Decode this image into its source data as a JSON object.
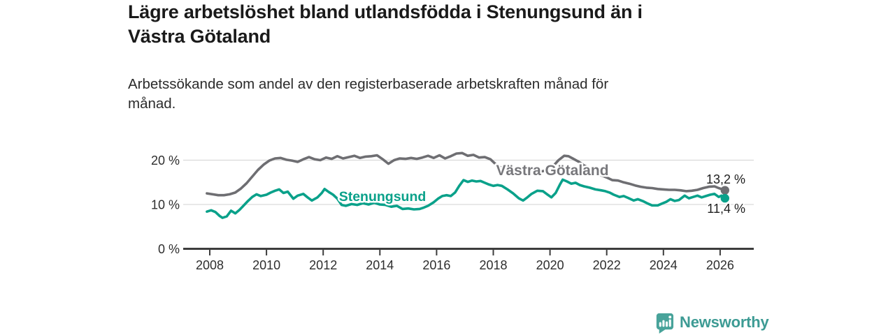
{
  "header": {
    "title": "Lägre arbetslöshet bland utlandsfödda i Stenungsund än i\nVästra Götaland",
    "subtitle": "Arbetssökande som andel av den registerbaserade arbetskraften månad för\nmånad."
  },
  "footer": {
    "brand": "Newsworthy",
    "brand_color": "#3d9b94",
    "logo_color": "#48a39a"
  },
  "chart_data": {
    "type": "line",
    "title": "Lägre arbetslöshet bland utlandsfödda i Stenungsund än i Västra Götaland",
    "subtitle": "Arbetssökande som andel av den registerbaserade arbetskraften månad för månad.",
    "unit": "%",
    "grid": "horizontal-only",
    "legend_position": "inline-labels",
    "x_axis": {
      "ticks": [
        2008,
        2010,
        2012,
        2014,
        2016,
        2018,
        2020,
        2022,
        2024,
        2026
      ],
      "range": [
        2007.9,
        2027.2
      ]
    },
    "y_axis": {
      "ticks": [
        {
          "value": 0,
          "label": "0 %"
        },
        {
          "value": 10,
          "label": "10 %"
        },
        {
          "value": 20,
          "label": "20 %"
        }
      ],
      "grid_values": [
        10,
        20
      ],
      "range": [
        0,
        24
      ]
    },
    "series": [
      {
        "name": "Västra Götaland",
        "color": "#6e6e72",
        "label_color": "#77777b",
        "end_label": "13,2 %",
        "end_value": 13.2,
        "points": [
          [
            2007.9,
            12.5
          ],
          [
            2008.1,
            12.3
          ],
          [
            2008.3,
            12.1
          ],
          [
            2008.5,
            12.1
          ],
          [
            2008.7,
            12.3
          ],
          [
            2008.9,
            12.7
          ],
          [
            2009.1,
            13.6
          ],
          [
            2009.3,
            14.8
          ],
          [
            2009.5,
            16.3
          ],
          [
            2009.7,
            17.8
          ],
          [
            2009.9,
            19.0
          ],
          [
            2010.1,
            19.9
          ],
          [
            2010.3,
            20.4
          ],
          [
            2010.5,
            20.5
          ],
          [
            2010.7,
            20.1
          ],
          [
            2010.9,
            19.9
          ],
          [
            2011.1,
            19.6
          ],
          [
            2011.3,
            20.2
          ],
          [
            2011.5,
            20.7
          ],
          [
            2011.7,
            20.2
          ],
          [
            2011.9,
            20.0
          ],
          [
            2012.1,
            20.6
          ],
          [
            2012.3,
            20.3
          ],
          [
            2012.5,
            20.9
          ],
          [
            2012.7,
            20.4
          ],
          [
            2012.9,
            20.7
          ],
          [
            2013.1,
            21.0
          ],
          [
            2013.3,
            20.5
          ],
          [
            2013.5,
            20.8
          ],
          [
            2013.7,
            20.9
          ],
          [
            2013.9,
            21.1
          ],
          [
            2014.1,
            20.2
          ],
          [
            2014.3,
            19.2
          ],
          [
            2014.5,
            20.0
          ],
          [
            2014.7,
            20.4
          ],
          [
            2014.9,
            20.3
          ],
          [
            2015.1,
            20.5
          ],
          [
            2015.3,
            20.3
          ],
          [
            2015.5,
            20.6
          ],
          [
            2015.7,
            21.0
          ],
          [
            2015.9,
            20.5
          ],
          [
            2016.1,
            21.1
          ],
          [
            2016.3,
            20.4
          ],
          [
            2016.5,
            20.9
          ],
          [
            2016.7,
            21.5
          ],
          [
            2016.9,
            21.6
          ],
          [
            2017.1,
            21.0
          ],
          [
            2017.3,
            21.2
          ],
          [
            2017.5,
            20.6
          ],
          [
            2017.7,
            20.7
          ],
          [
            2017.9,
            20.2
          ],
          [
            2018.1,
            19.0
          ],
          [
            2018.3,
            18.2
          ],
          [
            2018.6,
            17.8
          ],
          [
            2018.9,
            17.5
          ],
          [
            2019.2,
            17.3
          ],
          [
            2019.5,
            17.2
          ],
          [
            2019.8,
            17.6
          ],
          [
            2020.1,
            18.6
          ],
          [
            2020.3,
            20.0
          ],
          [
            2020.5,
            21.0
          ],
          [
            2020.65,
            20.9
          ],
          [
            2020.8,
            20.4
          ],
          [
            2021.0,
            19.7
          ],
          [
            2021.2,
            18.8
          ],
          [
            2021.4,
            18.2
          ],
          [
            2021.6,
            17.4
          ],
          [
            2021.8,
            16.6
          ],
          [
            2022.0,
            16.1
          ],
          [
            2022.2,
            15.5
          ],
          [
            2022.4,
            15.4
          ],
          [
            2022.6,
            15.0
          ],
          [
            2022.8,
            14.7
          ],
          [
            2023.0,
            14.3
          ],
          [
            2023.2,
            14.0
          ],
          [
            2023.4,
            13.8
          ],
          [
            2023.6,
            13.7
          ],
          [
            2023.8,
            13.5
          ],
          [
            2024.0,
            13.4
          ],
          [
            2024.2,
            13.3
          ],
          [
            2024.4,
            13.3
          ],
          [
            2024.6,
            13.2
          ],
          [
            2024.8,
            13.0
          ],
          [
            2025.0,
            13.1
          ],
          [
            2025.2,
            13.3
          ],
          [
            2025.4,
            13.7
          ],
          [
            2025.6,
            14.0
          ],
          [
            2025.8,
            14.1
          ],
          [
            2025.95,
            13.7
          ],
          [
            2026.05,
            13.5
          ],
          [
            2026.17,
            13.2
          ]
        ]
      },
      {
        "name": "Stenungsund",
        "color": "#0aa18a",
        "label_color": "#0aa18a",
        "end_label": "11,4 %",
        "end_value": 11.4,
        "points": [
          [
            2007.9,
            8.4
          ],
          [
            2008.05,
            8.7
          ],
          [
            2008.2,
            8.3
          ],
          [
            2008.35,
            7.4
          ],
          [
            2008.45,
            7.0
          ],
          [
            2008.6,
            7.3
          ],
          [
            2008.75,
            8.6
          ],
          [
            2008.9,
            8.0
          ],
          [
            2009.05,
            8.8
          ],
          [
            2009.2,
            9.8
          ],
          [
            2009.35,
            10.8
          ],
          [
            2009.5,
            11.7
          ],
          [
            2009.65,
            12.3
          ],
          [
            2009.8,
            11.9
          ],
          [
            2010.0,
            12.2
          ],
          [
            2010.15,
            12.7
          ],
          [
            2010.3,
            13.1
          ],
          [
            2010.45,
            13.4
          ],
          [
            2010.6,
            12.6
          ],
          [
            2010.75,
            12.9
          ],
          [
            2010.95,
            11.3
          ],
          [
            2011.1,
            12.0
          ],
          [
            2011.3,
            12.4
          ],
          [
            2011.45,
            11.6
          ],
          [
            2011.6,
            10.9
          ],
          [
            2011.8,
            11.6
          ],
          [
            2011.95,
            12.6
          ],
          [
            2012.05,
            13.5
          ],
          [
            2012.2,
            12.8
          ],
          [
            2012.35,
            12.2
          ],
          [
            2012.5,
            11.3
          ],
          [
            2012.65,
            9.9
          ],
          [
            2012.8,
            9.7
          ],
          [
            2013.0,
            10.1
          ],
          [
            2013.2,
            9.9
          ],
          [
            2013.4,
            10.3
          ],
          [
            2013.6,
            10.0
          ],
          [
            2013.8,
            10.4
          ],
          [
            2014.0,
            10.0
          ],
          [
            2014.2,
            9.9
          ],
          [
            2014.4,
            9.5
          ],
          [
            2014.6,
            9.7
          ],
          [
            2014.8,
            9.0
          ],
          [
            2015.0,
            9.1
          ],
          [
            2015.2,
            8.9
          ],
          [
            2015.4,
            9.0
          ],
          [
            2015.55,
            9.3
          ],
          [
            2015.7,
            9.7
          ],
          [
            2015.9,
            10.5
          ],
          [
            2016.05,
            11.3
          ],
          [
            2016.2,
            11.9
          ],
          [
            2016.35,
            12.1
          ],
          [
            2016.5,
            11.9
          ],
          [
            2016.65,
            12.7
          ],
          [
            2016.8,
            14.2
          ],
          [
            2016.95,
            15.5
          ],
          [
            2017.1,
            15.1
          ],
          [
            2017.25,
            15.4
          ],
          [
            2017.4,
            15.2
          ],
          [
            2017.55,
            15.3
          ],
          [
            2017.7,
            14.9
          ],
          [
            2017.85,
            14.5
          ],
          [
            2018.0,
            14.2
          ],
          [
            2018.15,
            14.4
          ],
          [
            2018.3,
            14.2
          ],
          [
            2018.5,
            13.4
          ],
          [
            2018.7,
            12.5
          ],
          [
            2018.9,
            11.4
          ],
          [
            2019.05,
            10.9
          ],
          [
            2019.2,
            11.6
          ],
          [
            2019.35,
            12.4
          ],
          [
            2019.55,
            13.1
          ],
          [
            2019.75,
            13.0
          ],
          [
            2019.9,
            12.3
          ],
          [
            2020.05,
            11.6
          ],
          [
            2020.2,
            12.6
          ],
          [
            2020.35,
            14.5
          ],
          [
            2020.45,
            15.6
          ],
          [
            2020.6,
            15.2
          ],
          [
            2020.75,
            14.7
          ],
          [
            2020.9,
            14.9
          ],
          [
            2021.05,
            14.4
          ],
          [
            2021.2,
            14.1
          ],
          [
            2021.4,
            13.8
          ],
          [
            2021.6,
            13.4
          ],
          [
            2021.8,
            13.2
          ],
          [
            2021.95,
            13.0
          ],
          [
            2022.1,
            12.7
          ],
          [
            2022.25,
            12.2
          ],
          [
            2022.45,
            11.7
          ],
          [
            2022.6,
            11.9
          ],
          [
            2022.75,
            11.5
          ],
          [
            2022.95,
            10.9
          ],
          [
            2023.1,
            11.2
          ],
          [
            2023.3,
            10.7
          ],
          [
            2023.45,
            10.2
          ],
          [
            2023.6,
            9.8
          ],
          [
            2023.8,
            9.8
          ],
          [
            2023.95,
            10.2
          ],
          [
            2024.1,
            10.6
          ],
          [
            2024.25,
            11.2
          ],
          [
            2024.4,
            10.8
          ],
          [
            2024.55,
            11.0
          ],
          [
            2024.75,
            12.0
          ],
          [
            2024.9,
            11.4
          ],
          [
            2025.05,
            11.7
          ],
          [
            2025.2,
            12.0
          ],
          [
            2025.35,
            11.6
          ],
          [
            2025.5,
            11.9
          ],
          [
            2025.65,
            12.2
          ],
          [
            2025.8,
            12.4
          ],
          [
            2025.95,
            11.7
          ],
          [
            2026.05,
            12.0
          ],
          [
            2026.17,
            11.4
          ]
        ]
      }
    ],
    "style": {
      "grid_color": "#d9d9d9",
      "axis_color": "#3d3d3d",
      "text_color": "#2e2e2e"
    }
  }
}
